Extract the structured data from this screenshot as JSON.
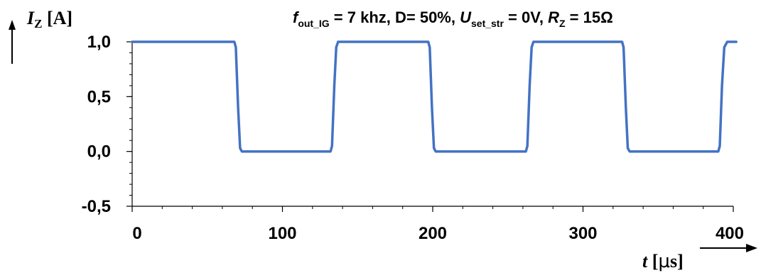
{
  "chart_data": {
    "type": "line",
    "annotation": {
      "f_sym": "f",
      "f_sub": "out_IG",
      "f_rest": " = 7 khz, D= 50%, ",
      "u_sym": "U",
      "u_sub": "set_str",
      "u_rest": " = 0V, ",
      "r_sym": "R",
      "r_sub": "Z",
      "r_rest": " = 15Ω"
    },
    "ylabel": {
      "symbol": "I",
      "sub": "Z",
      "unit": " [A]"
    },
    "xlabel": {
      "symbol": "t",
      "unit_open": " [",
      "mu": "μ",
      "unit_rest": "s]"
    },
    "xlim": [
      0,
      400
    ],
    "ylim": [
      -0.5,
      1.0
    ],
    "x_ticks": [
      0,
      100,
      200,
      300,
      400
    ],
    "x_tick_labels": [
      "0",
      "100",
      "200",
      "300",
      "400"
    ],
    "y_ticks": [
      1.0,
      0.5,
      0.0,
      -0.5
    ],
    "y_tick_labels": [
      "1,0",
      "0,5",
      "0,0",
      "-0,5"
    ],
    "grid": false,
    "series": [
      {
        "color": "#4472C4",
        "points": [
          [
            0,
            1.0
          ],
          [
            68,
            1.0
          ],
          [
            69,
            0.95
          ],
          [
            70.5,
            0.4
          ],
          [
            71.8,
            0.03
          ],
          [
            73,
            0.0
          ],
          [
            132,
            0.0
          ],
          [
            133,
            0.05
          ],
          [
            134.5,
            0.6
          ],
          [
            135.8,
            0.95
          ],
          [
            137,
            1.0
          ],
          [
            197,
            1.0
          ],
          [
            198,
            0.95
          ],
          [
            199.5,
            0.4
          ],
          [
            200.8,
            0.03
          ],
          [
            202,
            0.0
          ],
          [
            262,
            0.0
          ],
          [
            263,
            0.05
          ],
          [
            264.5,
            0.6
          ],
          [
            265.8,
            0.95
          ],
          [
            267,
            1.0
          ],
          [
            326,
            1.0
          ],
          [
            327,
            0.95
          ],
          [
            328.5,
            0.4
          ],
          [
            329.8,
            0.03
          ],
          [
            331,
            0.0
          ],
          [
            390,
            0.0
          ],
          [
            391,
            0.05
          ],
          [
            392.5,
            0.6
          ],
          [
            394,
            0.95
          ],
          [
            396,
            1.0
          ],
          [
            402,
            1.0
          ]
        ]
      }
    ]
  }
}
